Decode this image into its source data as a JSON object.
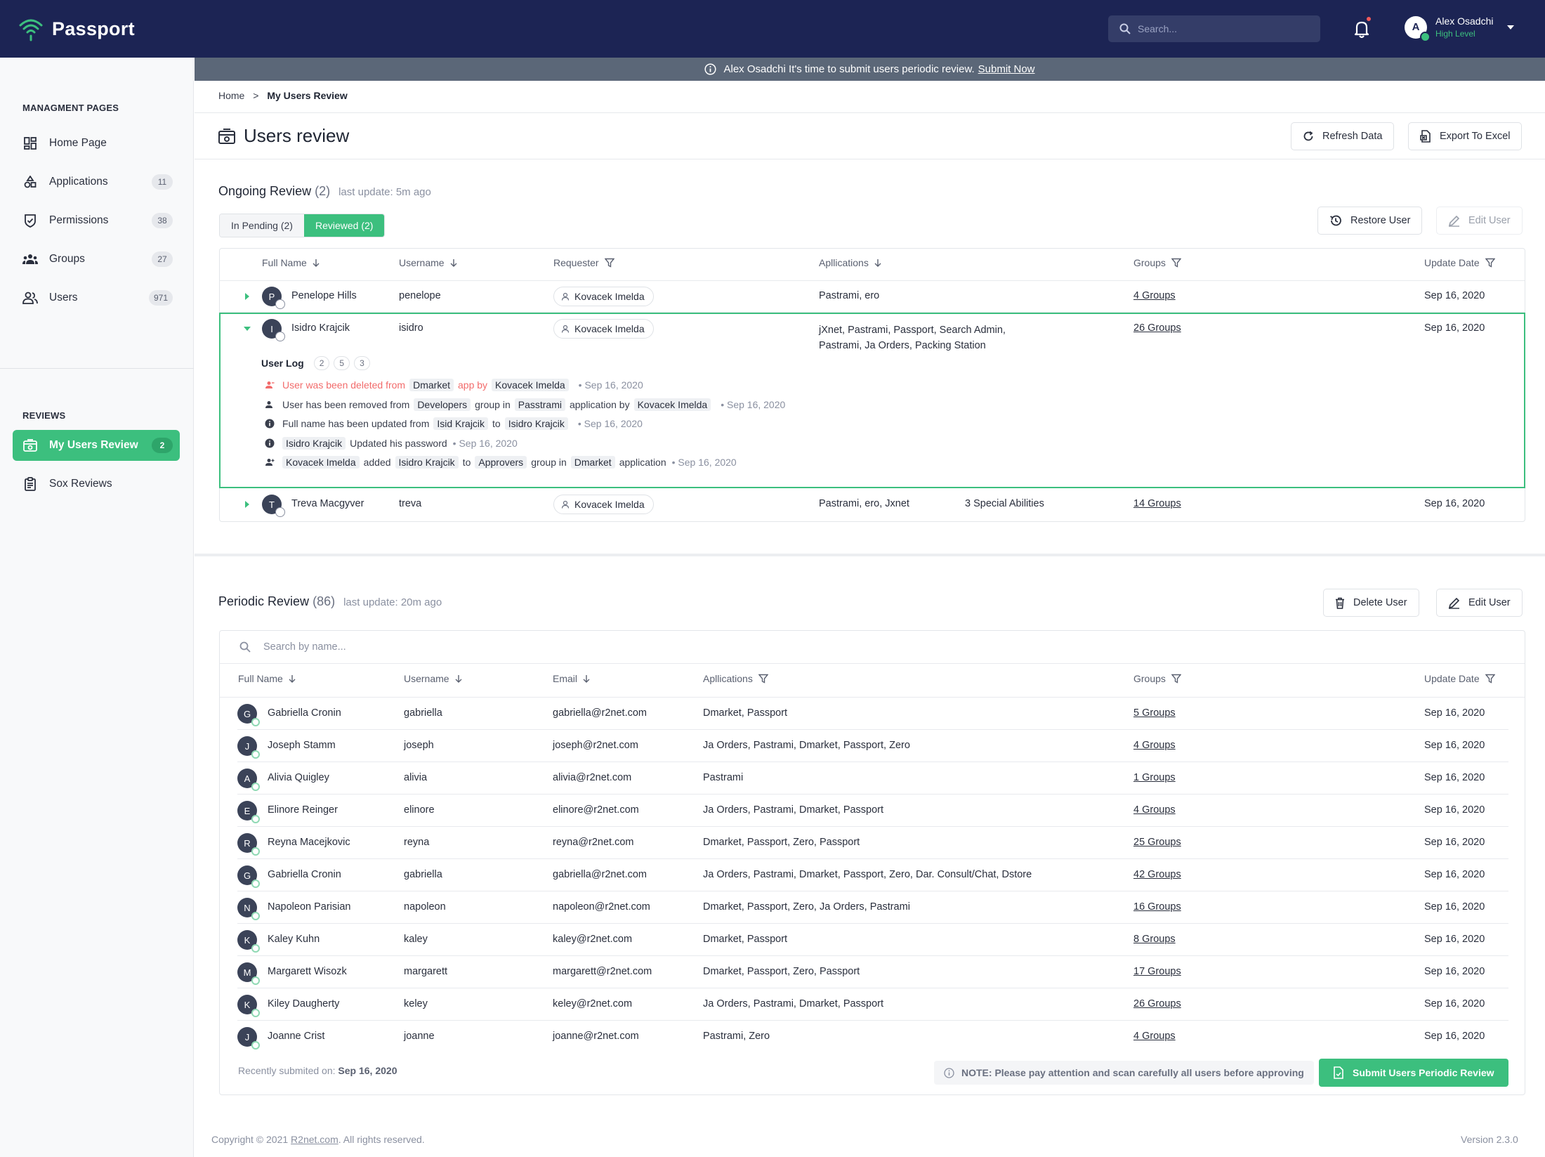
{
  "app": {
    "name": "Passport"
  },
  "header": {
    "search_placeholder": "Search...",
    "user_name": "Alex Osadchi",
    "user_level": "High Level",
    "user_initial": "A"
  },
  "banner": {
    "text": "Alex Osadchi It's time to submit users periodic review.",
    "link": "Submit Now"
  },
  "sidebar": {
    "section1": "MANAGMENT PAGES",
    "items": [
      {
        "label": "Home Page",
        "badge": ""
      },
      {
        "label": "Applications",
        "badge": "11"
      },
      {
        "label": "Permissions",
        "badge": "38"
      },
      {
        "label": "Groups",
        "badge": "27"
      },
      {
        "label": "Users",
        "badge": "971"
      }
    ],
    "section2": "REVIEWS",
    "review_items": [
      {
        "label": "My Users Review",
        "badge": "2"
      },
      {
        "label": "Sox Reviews",
        "badge": ""
      }
    ]
  },
  "breadcrumb": {
    "home": "Home",
    "sep": ">",
    "current": "My Users Review"
  },
  "page": {
    "title": "Users review",
    "refresh": "Refresh Data",
    "export": "Export To Excel"
  },
  "ongoing": {
    "title": "Ongoing Review",
    "count": "(2)",
    "updated": "last update: 5m ago",
    "tab_pending": "In Pending (2)",
    "tab_reviewed": "Reviewed (2)",
    "restore": "Restore User",
    "edit": "Edit User",
    "columns": [
      "Full Name",
      "Username",
      "Requester",
      "Apllications",
      "Groups",
      "Update Date"
    ],
    "rows": [
      {
        "initial": "P",
        "name": "Penelope Hills",
        "username": "penelope",
        "requester": "Kovacek Imelda",
        "apps": "Pastrami, ero",
        "extra": "",
        "groups": "4 Groups",
        "date": "Sep 16, 2020"
      },
      {
        "initial": "I",
        "name": "Isidro Krajcik",
        "username": "isidro",
        "requester": "Kovacek Imelda",
        "apps": "jXnet, Pastrami, Passport, Search Admin,",
        "apps2": "Pastrami, Ja Orders, Packing Station",
        "extra": "",
        "groups": "26 Groups",
        "date": "Sep 16, 2020"
      },
      {
        "initial": "T",
        "name": "Treva Macgyver",
        "username": "treva",
        "requester": "Kovacek Imelda",
        "apps": "Pastrami, ero, Jxnet",
        "extra": "3 Special Abilities",
        "groups": "14 Groups",
        "date": "Sep 16, 2020"
      }
    ],
    "log": {
      "title": "User Log",
      "b1": "2",
      "b2": "5",
      "b3": "3",
      "l1": {
        "a": "User was been deleted from",
        "t1": "Dmarket",
        "b": "app by",
        "t2": "Kovacek Imelda",
        "date": "• Sep 16, 2020"
      },
      "l2": {
        "a": "User has been removed from",
        "t1": "Developers",
        "b": "group in",
        "t2": "Passtrami",
        "c": "application by",
        "t3": "Kovacek Imelda",
        "date": "• Sep 16, 2020"
      },
      "l3": {
        "a": "Full name has been updated from",
        "t1": "Isid Krajcik",
        "b": "to",
        "t2": "Isidro Krajcik",
        "date": "• Sep 16, 2020"
      },
      "l4": {
        "t1": "Isidro Krajcik",
        "a": "Updated his password",
        "date": "• Sep 16, 2020"
      },
      "l5": {
        "t1": "Kovacek Imelda",
        "a": "added",
        "t2": "Isidro Krajcik",
        "b": "to",
        "t3": "Approvers",
        "c": "group in",
        "t4": "Dmarket",
        "d": "application",
        "date": "• Sep 16, 2020"
      }
    }
  },
  "periodic": {
    "title": "Periodic Review",
    "count": "(86)",
    "updated": "last update: 20m ago",
    "delete": "Delete User",
    "edit": "Edit User",
    "search_placeholder": "Search by name...",
    "columns": [
      "Full Name",
      "Username",
      "Email",
      "Apllications",
      "Groups",
      "Update Date"
    ],
    "rows": [
      {
        "initial": "G",
        "name": "Gabriella Cronin",
        "username": "gabriella",
        "email": "gabriella@r2net.com",
        "apps": "Dmarket, Passport",
        "groups": "5 Groups",
        "date": "Sep 16, 2020"
      },
      {
        "initial": "J",
        "name": "Joseph Stamm",
        "username": "joseph",
        "email": "joseph@r2net.com",
        "apps": "Ja Orders, Pastrami, Dmarket, Passport, Zero",
        "groups": "4 Groups",
        "date": "Sep 16, 2020"
      },
      {
        "initial": "A",
        "name": "Alivia Quigley",
        "username": "alivia",
        "email": "alivia@r2net.com",
        "apps": "Pastrami",
        "groups": "1 Groups",
        "date": "Sep 16, 2020"
      },
      {
        "initial": "E",
        "name": "Elinore Reinger",
        "username": "elinore",
        "email": "elinore@r2net.com",
        "apps": "Ja Orders, Pastrami, Dmarket, Passport",
        "groups": "4 Groups",
        "date": "Sep 16, 2020"
      },
      {
        "initial": "R",
        "name": "Reyna Macejkovic",
        "username": "reyna",
        "email": "reyna@r2net.com",
        "apps": "Dmarket, Passport, Zero, Passport",
        "groups": "25 Groups",
        "date": "Sep 16, 2020"
      },
      {
        "initial": "G",
        "name": "Gabriella Cronin",
        "username": "gabriella",
        "email": "gabriella@r2net.com",
        "apps": "Ja Orders, Pastrami, Dmarket, Passport, Zero, Dar. Consult/Chat, Dstore",
        "groups": "42 Groups",
        "date": "Sep 16, 2020"
      },
      {
        "initial": "N",
        "name": "Napoleon Parisian",
        "username": "napoleon",
        "email": "napoleon@r2net.com",
        "apps": "Dmarket, Passport, Zero, Ja Orders, Pastrami",
        "groups": "16 Groups",
        "date": "Sep 16, 2020"
      },
      {
        "initial": "K",
        "name": "Kaley Kuhn",
        "username": "kaley",
        "email": "kaley@r2net.com",
        "apps": "Dmarket, Passport",
        "groups": "8 Groups",
        "date": "Sep 16, 2020"
      },
      {
        "initial": "M",
        "name": "Margarett Wisozk",
        "username": "margarett",
        "email": "margarett@r2net.com",
        "apps": "Dmarket, Passport, Zero, Passport",
        "groups": "17 Groups",
        "date": "Sep 16, 2020"
      },
      {
        "initial": "K",
        "name": "Kiley Daugherty",
        "username": "keley",
        "email": "keley@r2net.com",
        "apps": "Ja Orders, Pastrami, Dmarket, Passport",
        "groups": "26 Groups",
        "date": "Sep 16, 2020"
      },
      {
        "initial": "J",
        "name": "Joanne Crist",
        "username": "joanne",
        "email": "joanne@r2net.com",
        "apps": "Pastrami, Zero",
        "groups": "4 Groups",
        "date": "Sep 16, 2020"
      }
    ],
    "recent_label": "Recently submited on:",
    "recent_date": "Sep 16, 2020",
    "note": "NOTE: Please pay attention and scan carefully all users before approving",
    "submit": "Submit Users Periodic Review"
  },
  "footer": {
    "copyright": "Copyright © 2021",
    "link": "R2net.com",
    "rights": ". All rights reserved.",
    "version": "Version 2.3.0"
  },
  "colors": {
    "navy": "#1c2454",
    "green": "#3cbf7e",
    "banner": "#5b6778",
    "red": "#f26b6b"
  }
}
